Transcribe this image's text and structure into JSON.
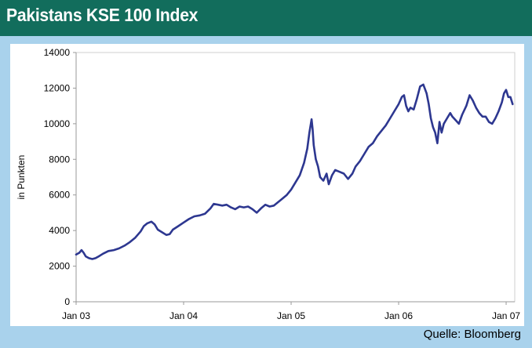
{
  "header": {
    "title": "Pakistans KSE 100 Index"
  },
  "source": "Quelle: Bloomberg",
  "colors": {
    "header_bg": "#126d5c",
    "page_bg": "#a9d2ec",
    "line": "#2d3790",
    "axis": "#999999"
  },
  "chart_data": {
    "type": "line",
    "title": "Pakistans KSE 100 Index",
    "xlabel": "",
    "ylabel": "in Punkten",
    "ylim": [
      0,
      14000
    ],
    "yticks": [
      0,
      2000,
      4000,
      6000,
      8000,
      10000,
      12000,
      14000
    ],
    "xticks": [
      {
        "label": "Jan 03",
        "t": 2003.0
      },
      {
        "label": "Jan 04",
        "t": 2004.0
      },
      {
        "label": "Jan 05",
        "t": 2005.0
      },
      {
        "label": "Jan 06",
        "t": 2006.0
      },
      {
        "label": "Jan 07",
        "t": 2007.0
      }
    ],
    "xlim": [
      2003.0,
      2007.08
    ],
    "grid": false,
    "series": [
      {
        "points": [
          [
            2003.0,
            2650
          ],
          [
            2003.03,
            2750
          ],
          [
            2003.05,
            2900
          ],
          [
            2003.07,
            2750
          ],
          [
            2003.09,
            2550
          ],
          [
            2003.12,
            2450
          ],
          [
            2003.15,
            2400
          ],
          [
            2003.18,
            2450
          ],
          [
            2003.21,
            2550
          ],
          [
            2003.25,
            2700
          ],
          [
            2003.3,
            2850
          ],
          [
            2003.35,
            2900
          ],
          [
            2003.4,
            3000
          ],
          [
            2003.45,
            3150
          ],
          [
            2003.5,
            3350
          ],
          [
            2003.55,
            3600
          ],
          [
            2003.6,
            3950
          ],
          [
            2003.63,
            4250
          ],
          [
            2003.66,
            4400
          ],
          [
            2003.7,
            4500
          ],
          [
            2003.73,
            4350
          ],
          [
            2003.76,
            4050
          ],
          [
            2003.8,
            3900
          ],
          [
            2003.84,
            3750
          ],
          [
            2003.87,
            3800
          ],
          [
            2003.9,
            4050
          ],
          [
            2003.95,
            4250
          ],
          [
            2004.0,
            4450
          ],
          [
            2004.05,
            4650
          ],
          [
            2004.1,
            4800
          ],
          [
            2004.15,
            4850
          ],
          [
            2004.2,
            4950
          ],
          [
            2004.25,
            5250
          ],
          [
            2004.28,
            5500
          ],
          [
            2004.32,
            5450
          ],
          [
            2004.36,
            5400
          ],
          [
            2004.4,
            5450
          ],
          [
            2004.44,
            5300
          ],
          [
            2004.48,
            5200
          ],
          [
            2004.52,
            5350
          ],
          [
            2004.56,
            5300
          ],
          [
            2004.6,
            5350
          ],
          [
            2004.64,
            5200
          ],
          [
            2004.68,
            5000
          ],
          [
            2004.72,
            5250
          ],
          [
            2004.76,
            5450
          ],
          [
            2004.8,
            5350
          ],
          [
            2004.84,
            5400
          ],
          [
            2004.88,
            5600
          ],
          [
            2004.92,
            5800
          ],
          [
            2004.96,
            6000
          ],
          [
            2005.0,
            6300
          ],
          [
            2005.04,
            6700
          ],
          [
            2005.08,
            7100
          ],
          [
            2005.12,
            7800
          ],
          [
            2005.15,
            8600
          ],
          [
            2005.17,
            9500
          ],
          [
            2005.19,
            10250
          ],
          [
            2005.2,
            9700
          ],
          [
            2005.21,
            8800
          ],
          [
            2005.23,
            8000
          ],
          [
            2005.25,
            7600
          ],
          [
            2005.27,
            7000
          ],
          [
            2005.3,
            6800
          ],
          [
            2005.33,
            7200
          ],
          [
            2005.35,
            6600
          ],
          [
            2005.38,
            7100
          ],
          [
            2005.41,
            7400
          ],
          [
            2005.45,
            7300
          ],
          [
            2005.49,
            7200
          ],
          [
            2005.53,
            6900
          ],
          [
            2005.57,
            7200
          ],
          [
            2005.6,
            7600
          ],
          [
            2005.64,
            7900
          ],
          [
            2005.68,
            8300
          ],
          [
            2005.72,
            8700
          ],
          [
            2005.76,
            8900
          ],
          [
            2005.8,
            9300
          ],
          [
            2005.84,
            9600
          ],
          [
            2005.88,
            9900
          ],
          [
            2005.92,
            10300
          ],
          [
            2005.96,
            10700
          ],
          [
            2006.0,
            11100
          ],
          [
            2006.03,
            11500
          ],
          [
            2006.05,
            11600
          ],
          [
            2006.07,
            11000
          ],
          [
            2006.09,
            10700
          ],
          [
            2006.11,
            10900
          ],
          [
            2006.14,
            10800
          ],
          [
            2006.17,
            11400
          ],
          [
            2006.2,
            12100
          ],
          [
            2006.23,
            12200
          ],
          [
            2006.26,
            11700
          ],
          [
            2006.28,
            11100
          ],
          [
            2006.3,
            10300
          ],
          [
            2006.32,
            9800
          ],
          [
            2006.34,
            9500
          ],
          [
            2006.36,
            8900
          ],
          [
            2006.38,
            10100
          ],
          [
            2006.4,
            9500
          ],
          [
            2006.42,
            10000
          ],
          [
            2006.45,
            10300
          ],
          [
            2006.48,
            10600
          ],
          [
            2006.5,
            10400
          ],
          [
            2006.53,
            10200
          ],
          [
            2006.56,
            10000
          ],
          [
            2006.59,
            10500
          ],
          [
            2006.63,
            11000
          ],
          [
            2006.66,
            11600
          ],
          [
            2006.69,
            11300
          ],
          [
            2006.72,
            10900
          ],
          [
            2006.75,
            10600
          ],
          [
            2006.78,
            10400
          ],
          [
            2006.81,
            10400
          ],
          [
            2006.84,
            10100
          ],
          [
            2006.87,
            10000
          ],
          [
            2006.9,
            10300
          ],
          [
            2006.93,
            10700
          ],
          [
            2006.96,
            11200
          ],
          [
            2006.98,
            11700
          ],
          [
            2007.0,
            11900
          ],
          [
            2007.02,
            11500
          ],
          [
            2007.04,
            11500
          ],
          [
            2007.06,
            11100
          ]
        ]
      }
    ]
  }
}
